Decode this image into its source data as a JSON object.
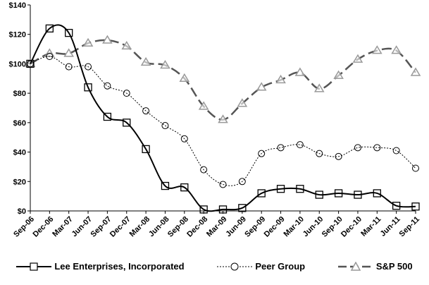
{
  "chart_data": {
    "type": "line",
    "title": "",
    "xlabel": "",
    "ylabel": "",
    "ylim": [
      0,
      140
    ],
    "yticks": [
      "$0",
      "$20",
      "$40",
      "$60",
      "$80",
      "$100",
      "$120",
      "$140"
    ],
    "ytick_values": [
      0,
      20,
      40,
      60,
      80,
      100,
      120,
      140
    ],
    "categories": [
      "Sep-06",
      "Dec-06",
      "Mar-07",
      "Jun-07",
      "Sep-07",
      "Dec-07",
      "Mar-08",
      "Jun-08",
      "Sep-08",
      "Dec-08",
      "Mar-09",
      "Jun-09",
      "Sep-09",
      "Dec-09",
      "Mar-10",
      "Jun-10",
      "Sep-10",
      "Dec-10",
      "Mar-11",
      "Jun-11",
      "Sep-11"
    ],
    "legend_position": "bottom",
    "grid": false,
    "series": [
      {
        "name": "Lee Enterprises, Incorporated",
        "color": "#000000",
        "marker": "square",
        "style": "solid",
        "values": [
          100,
          124,
          121,
          84,
          64,
          60,
          42,
          17,
          16,
          1,
          1,
          2,
          12,
          15,
          15,
          11,
          12,
          11,
          12,
          3.5,
          3
        ]
      },
      {
        "name": "Peer Group",
        "color": "#000000",
        "marker": "circle",
        "style": "dotted",
        "values": [
          100,
          105,
          98,
          98,
          85,
          80,
          68,
          58,
          49,
          28,
          18,
          20,
          39,
          43,
          45,
          39,
          37,
          43,
          43,
          41,
          29
        ]
      },
      {
        "name": "S&P 500",
        "color": "#555555",
        "marker": "triangle",
        "style": "dashed",
        "values": [
          100,
          107,
          107,
          114,
          116,
          112,
          101,
          99,
          90,
          71,
          62,
          73,
          84,
          89,
          94,
          83,
          92,
          103,
          109,
          109,
          94
        ]
      }
    ]
  }
}
